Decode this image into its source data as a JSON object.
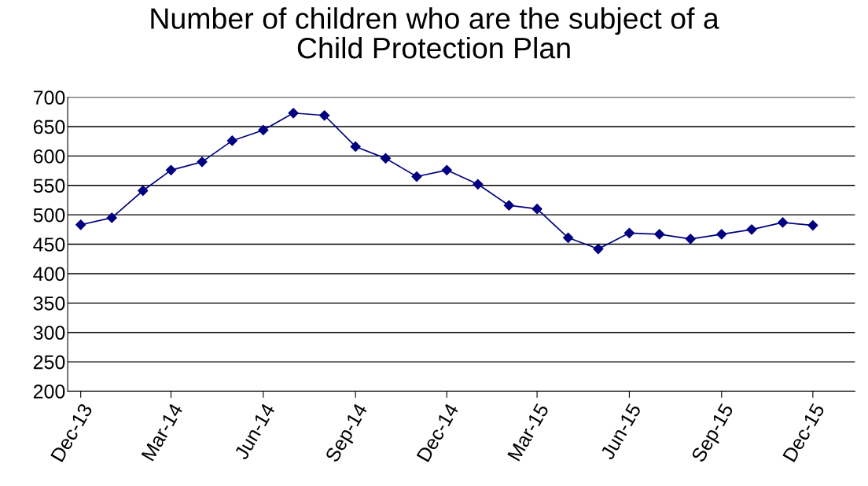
{
  "chart_data": {
    "type": "line",
    "title": "Number of children who are the subject of a\nChild Protection Plan",
    "x": [
      "2013-12",
      "2014-01",
      "2014-02",
      "2014-03",
      "2014-04",
      "2014-05",
      "2014-06",
      "2014-07",
      "2014-08",
      "2014-09",
      "2014-10",
      "2014-11",
      "2014-12",
      "2015-01",
      "2015-02",
      "2015-03",
      "2015-04",
      "2015-05",
      "2015-06",
      "2015-07",
      "2015-08",
      "2015-09",
      "2015-10",
      "2015-11",
      "2015-12"
    ],
    "series": [
      {
        "color": "#000080",
        "values": [
          483,
          495,
          541,
          576,
          590,
          626,
          644,
          673,
          669,
          616,
          596,
          565,
          576,
          552,
          516,
          510,
          461,
          442,
          469,
          467,
          459,
          467,
          475,
          487,
          482
        ]
      }
    ],
    "xlim": [
      "2013-11-18",
      "2016-01-12"
    ],
    "xticks": [
      {
        "value": "2013-12",
        "label": "Dec-13"
      },
      {
        "value": "2014-03",
        "label": "Mar-14"
      },
      {
        "value": "2014-06",
        "label": "Jun-14"
      },
      {
        "value": "2014-09",
        "label": "Sep-14"
      },
      {
        "value": "2014-12",
        "label": "Dec-14"
      },
      {
        "value": "2015-03",
        "label": "Mar-15"
      },
      {
        "value": "2015-06",
        "label": "Jun-15"
      },
      {
        "value": "2015-09",
        "label": "Sep-15"
      },
      {
        "value": "2015-12",
        "label": "Dec-15"
      }
    ],
    "ylim": [
      200,
      700
    ],
    "yticks": [
      200,
      250,
      300,
      350,
      400,
      450,
      500,
      550,
      600,
      650,
      700
    ],
    "grid": "y",
    "marker": "diamond",
    "line_style": "solid"
  }
}
